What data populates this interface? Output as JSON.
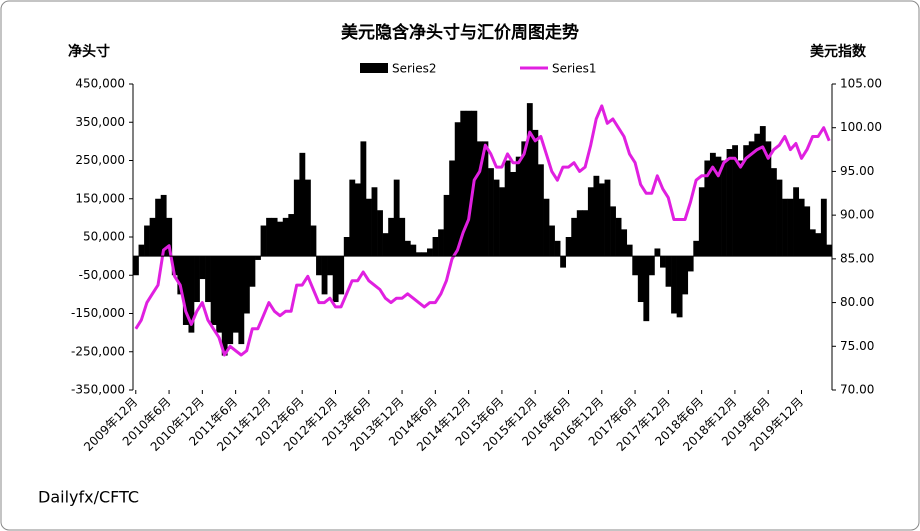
{
  "chart_data": {
    "type": "bar-line",
    "title": "美元隐含净头寸与汇价周图走势",
    "y_label": "净头寸",
    "y2_label": "美元指数",
    "source": "Dailyfx/CFTC",
    "categories": [
      "2009年12月",
      null,
      null,
      null,
      null,
      null,
      "2010年6月",
      null,
      null,
      null,
      null,
      null,
      "2010年12月",
      null,
      null,
      null,
      null,
      null,
      "2011年6月",
      null,
      null,
      null,
      null,
      null,
      "2011年12月",
      null,
      null,
      null,
      null,
      null,
      "2012年6月",
      null,
      null,
      null,
      null,
      null,
      "2012年12月",
      null,
      null,
      null,
      null,
      null,
      "2013年6月",
      null,
      null,
      null,
      null,
      null,
      "2013年12月",
      null,
      null,
      null,
      null,
      null,
      "2014年6月",
      null,
      null,
      null,
      null,
      null,
      "2014年12月",
      null,
      null,
      null,
      null,
      null,
      "2015年6月",
      null,
      null,
      null,
      null,
      null,
      "2015年12月",
      null,
      null,
      null,
      null,
      null,
      "2016年6月",
      null,
      null,
      null,
      null,
      null,
      "2016年12月",
      null,
      null,
      null,
      null,
      null,
      "2017年6月",
      null,
      null,
      null,
      null,
      null,
      "2017年12月",
      null,
      null,
      null,
      null,
      null,
      "2018年6月",
      null,
      null,
      null,
      null,
      null,
      "2018年12月",
      null,
      null,
      null,
      null,
      null,
      "2019年6月",
      null,
      null,
      null,
      null,
      null,
      "2019年12月",
      null,
      null,
      null,
      null,
      null
    ],
    "series": [
      {
        "name": "Series2",
        "color": "#000000",
        "values": [
          -50000,
          30000,
          80000,
          100000,
          150000,
          160000,
          100000,
          -50000,
          -100000,
          -180000,
          -200000,
          -120000,
          -60000,
          -120000,
          -180000,
          -200000,
          -260000,
          -230000,
          -200000,
          -230000,
          -150000,
          -80000,
          -10000,
          80000,
          100000,
          100000,
          90000,
          100000,
          110000,
          200000,
          270000,
          200000,
          80000,
          -50000,
          -100000,
          -50000,
          -120000,
          -100000,
          50000,
          200000,
          190000,
          300000,
          150000,
          180000,
          120000,
          60000,
          100000,
          200000,
          100000,
          40000,
          30000,
          10000,
          10000,
          20000,
          50000,
          70000,
          160000,
          250000,
          350000,
          380000,
          380000,
          380000,
          300000,
          300000,
          230000,
          200000,
          180000,
          250000,
          220000,
          260000,
          300000,
          400000,
          330000,
          240000,
          150000,
          80000,
          40000,
          -30000,
          50000,
          100000,
          120000,
          120000,
          180000,
          210000,
          190000,
          200000,
          130000,
          100000,
          70000,
          30000,
          -50000,
          -120000,
          -170000,
          -50000,
          20000,
          -30000,
          -80000,
          -150000,
          -160000,
          -100000,
          -40000,
          40000,
          180000,
          250000,
          270000,
          260000,
          250000,
          280000,
          290000,
          250000,
          290000,
          300000,
          320000,
          340000,
          300000,
          230000,
          200000,
          150000,
          150000,
          180000,
          150000,
          130000,
          70000,
          60000,
          150000,
          30000
        ]
      },
      {
        "name": "Series1",
        "color": "#e020e0",
        "axis": "y2",
        "values": [
          77,
          78,
          80,
          81,
          82,
          86,
          86.5,
          83,
          82,
          79,
          77.5,
          79,
          80,
          78,
          77,
          76,
          74,
          75,
          74.5,
          74,
          74.5,
          77,
          77,
          78.5,
          80,
          79,
          78.5,
          79,
          79,
          82,
          82,
          83,
          81.5,
          80,
          80,
          80.5,
          79.5,
          79.5,
          81,
          82.5,
          82.5,
          83.5,
          82.5,
          82,
          81.5,
          80.5,
          80,
          80.5,
          80.5,
          81,
          80.5,
          80,
          79.5,
          80,
          80,
          81,
          82.5,
          85,
          86,
          88,
          89.5,
          94,
          95,
          98,
          97,
          95.5,
          95.5,
          97,
          96,
          96,
          97,
          99.5,
          98.5,
          99,
          97,
          95,
          94,
          95.5,
          95.5,
          96,
          95,
          95.5,
          98,
          101,
          102.5,
          100.5,
          101,
          100,
          99,
          97,
          96,
          93.5,
          92.5,
          92.5,
          94.5,
          93,
          92,
          89.5,
          89.5,
          89.5,
          91.5,
          94,
          94.5,
          94.5,
          95.5,
          94.5,
          96,
          96.5,
          96.5,
          95.5,
          96.5,
          97,
          97.5,
          97.8,
          96.5,
          97.5,
          98,
          99,
          97.5,
          98.2,
          96.5,
          97.5,
          99,
          99,
          100,
          98.5
        ]
      }
    ],
    "ylim": [
      -350000,
      450000
    ],
    "yticks": [
      {
        "value": -350000,
        "label": "-350,000"
      },
      {
        "value": -250000,
        "label": "-250,000"
      },
      {
        "value": -150000,
        "label": "-150,000"
      },
      {
        "value": -50000,
        "label": "-50,000"
      },
      {
        "value": 50000,
        "label": "50,000"
      },
      {
        "value": 150000,
        "label": "150,000"
      },
      {
        "value": 250000,
        "label": "250,000"
      },
      {
        "value": 350000,
        "label": "350,000"
      },
      {
        "value": 450000,
        "label": "450,000"
      }
    ],
    "y2lim": [
      70,
      105
    ],
    "y2ticks": [
      {
        "value": 70,
        "label": "70.00"
      },
      {
        "value": 75,
        "label": "75.00"
      },
      {
        "value": 80,
        "label": "80.00"
      },
      {
        "value": 85,
        "label": "85.00"
      },
      {
        "value": 90,
        "label": "90.00"
      },
      {
        "value": 95,
        "label": "95.00"
      },
      {
        "value": 100,
        "label": "100.00"
      },
      {
        "value": 105,
        "label": "105.00"
      }
    ]
  }
}
